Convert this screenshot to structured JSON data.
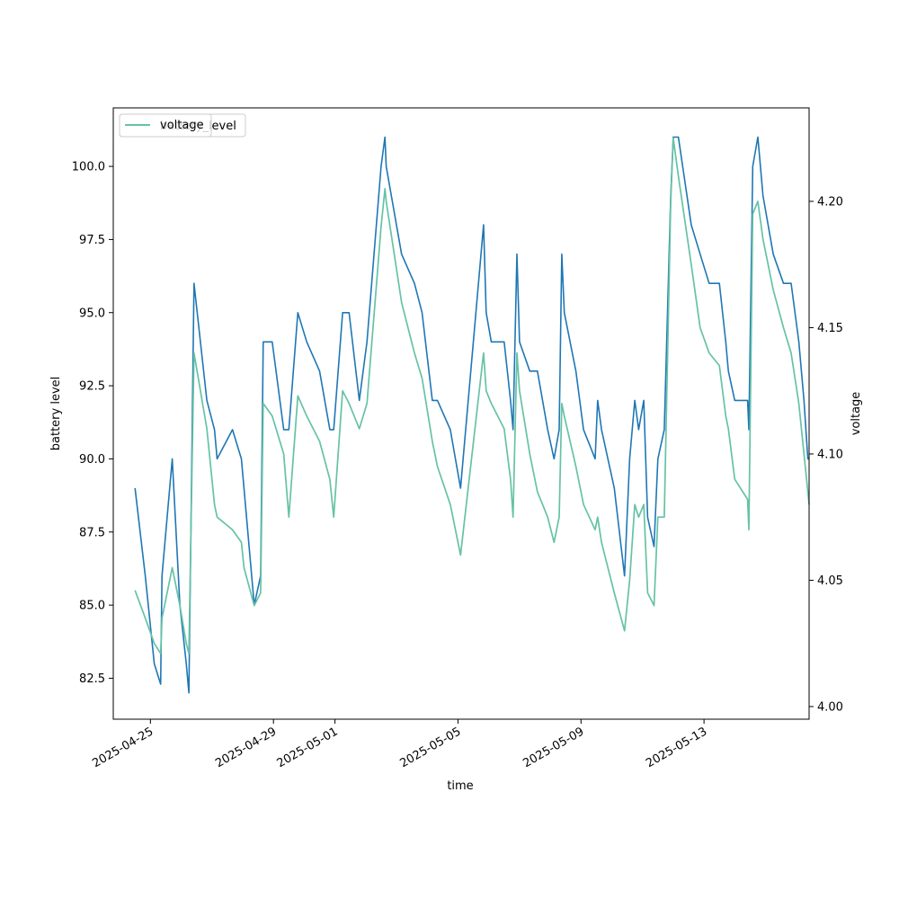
{
  "chart_data": {
    "type": "line",
    "xlabel": "time",
    "ylabel": "battery level",
    "y2label": "voltage",
    "x_ticks": [
      "2025-04-25",
      "2025-04-29",
      "2025-05-01",
      "2025-05-05",
      "2025-05-09",
      "2025-05-13"
    ],
    "y_ticks": [
      "82.5",
      "85.0",
      "87.5",
      "90.0",
      "92.5",
      "95.0",
      "97.5",
      "100.0"
    ],
    "y2_ticks": [
      "4.00",
      "4.05",
      "4.10",
      "4.15",
      "4.20"
    ],
    "xlim": [
      "2025-04-23 19:00",
      "2025-05-16 10:00"
    ],
    "ylim": [
      81.1,
      102.0
    ],
    "y2lim": [
      3.995,
      4.237
    ],
    "grid": false,
    "legend_position": "top-left",
    "legend": [
      "battery_level",
      "voltage"
    ],
    "series": [
      {
        "name": "battery_level",
        "axis": "left",
        "color": "#1f77b4",
        "points": [
          [
            "2025-04-24 12:00",
            89
          ],
          [
            "2025-04-24 20:00",
            86
          ],
          [
            "2025-04-25 03:00",
            83
          ],
          [
            "2025-04-25 08:00",
            82.3
          ],
          [
            "2025-04-25 09:00",
            86
          ],
          [
            "2025-04-25 17:00",
            90
          ],
          [
            "2025-04-25 23:00",
            85
          ],
          [
            "2025-04-26 04:00",
            83
          ],
          [
            "2025-04-26 06:00",
            82
          ],
          [
            "2025-04-26 10:00",
            96
          ],
          [
            "2025-04-26 20:00",
            92
          ],
          [
            "2025-04-27 02:00",
            91
          ],
          [
            "2025-04-27 04:00",
            90
          ],
          [
            "2025-04-27 16:00",
            91
          ],
          [
            "2025-04-27 23:00",
            90
          ],
          [
            "2025-04-28 01:00",
            89
          ],
          [
            "2025-04-28 09:00",
            85
          ],
          [
            "2025-04-28 14:00",
            86
          ],
          [
            "2025-04-28 16:00",
            94
          ],
          [
            "2025-04-28 23:00",
            94
          ],
          [
            "2025-04-29 08:00",
            91
          ],
          [
            "2025-04-29 12:00",
            91
          ],
          [
            "2025-04-29 19:00",
            95
          ],
          [
            "2025-04-30 02:00",
            94
          ],
          [
            "2025-04-30 12:00",
            93
          ],
          [
            "2025-04-30 20:00",
            91
          ],
          [
            "2025-04-30 23:00",
            91
          ],
          [
            "2025-05-01 06:00",
            95
          ],
          [
            "2025-05-01 11:00",
            95
          ],
          [
            "2025-05-01 19:00",
            92
          ],
          [
            "2025-05-02 01:00",
            94
          ],
          [
            "2025-05-02 12:00",
            100
          ],
          [
            "2025-05-02 15:00",
            101
          ],
          [
            "2025-05-02 16:00",
            100
          ],
          [
            "2025-05-03 04:00",
            97
          ],
          [
            "2025-05-03 14:00",
            96
          ],
          [
            "2025-05-03 20:00",
            95
          ],
          [
            "2025-05-04 04:00",
            92
          ],
          [
            "2025-05-04 08:00",
            92
          ],
          [
            "2025-05-04 18:00",
            91
          ],
          [
            "2025-05-05 02:00",
            89
          ],
          [
            "2025-05-05 20:00",
            98
          ],
          [
            "2025-05-05 22:00",
            95
          ],
          [
            "2025-05-06 02:00",
            94
          ],
          [
            "2025-05-06 12:00",
            94
          ],
          [
            "2025-05-06 17:00",
            92
          ],
          [
            "2025-05-06 19:00",
            91
          ],
          [
            "2025-05-06 22:00",
            97
          ],
          [
            "2025-05-07 00:00",
            94
          ],
          [
            "2025-05-07 08:00",
            93
          ],
          [
            "2025-05-07 14:00",
            93
          ],
          [
            "2025-05-07 22:00",
            91
          ],
          [
            "2025-05-08 03:00",
            90
          ],
          [
            "2025-05-08 07:00",
            91
          ],
          [
            "2025-05-08 09:00",
            97
          ],
          [
            "2025-05-08 11:00",
            95
          ],
          [
            "2025-05-08 20:00",
            93
          ],
          [
            "2025-05-09 02:00",
            91
          ],
          [
            "2025-05-09 11:00",
            90
          ],
          [
            "2025-05-09 13:00",
            92
          ],
          [
            "2025-05-09 16:00",
            91
          ],
          [
            "2025-05-10 02:00",
            89
          ],
          [
            "2025-05-10 10:00",
            86
          ],
          [
            "2025-05-10 14:00",
            90
          ],
          [
            "2025-05-10 18:00",
            92
          ],
          [
            "2025-05-10 21:00",
            91
          ],
          [
            "2025-05-11 01:00",
            92
          ],
          [
            "2025-05-11 04:00",
            88
          ],
          [
            "2025-05-11 09:00",
            87
          ],
          [
            "2025-05-11 12:00",
            90
          ],
          [
            "2025-05-11 17:00",
            91
          ],
          [
            "2025-05-11 22:00",
            99
          ],
          [
            "2025-05-12 00:00",
            101
          ],
          [
            "2025-05-12 04:00",
            101
          ],
          [
            "2025-05-12 14:00",
            98
          ],
          [
            "2025-05-12 21:00",
            97
          ],
          [
            "2025-05-13 04:00",
            96
          ],
          [
            "2025-05-13 12:00",
            96
          ],
          [
            "2025-05-13 17:00",
            94
          ],
          [
            "2025-05-13 19:00",
            93
          ],
          [
            "2025-05-14 00:00",
            92
          ],
          [
            "2025-05-14 10:00",
            92
          ],
          [
            "2025-05-14 11:00",
            91
          ],
          [
            "2025-05-14 14:00",
            100
          ],
          [
            "2025-05-14 18:00",
            101
          ],
          [
            "2025-05-14 22:00",
            99
          ],
          [
            "2025-05-15 06:00",
            97
          ],
          [
            "2025-05-15 14:00",
            96
          ],
          [
            "2025-05-15 20:00",
            96
          ],
          [
            "2025-05-16 02:00",
            94
          ],
          [
            "2025-05-16 06:00",
            92
          ],
          [
            "2025-05-16 09:00",
            90
          ],
          [
            "2025-05-16 10:00",
            90
          ]
        ]
      },
      {
        "name": "voltage",
        "axis": "right",
        "color": "#66c2a5",
        "points": [
          [
            "2025-04-24 12:00",
            4.046
          ],
          [
            "2025-04-24 20:00",
            4.035
          ],
          [
            "2025-04-25 03:00",
            4.025
          ],
          [
            "2025-04-25 08:00",
            4.021
          ],
          [
            "2025-04-25 09:00",
            4.035
          ],
          [
            "2025-04-25 17:00",
            4.055
          ],
          [
            "2025-04-25 23:00",
            4.04
          ],
          [
            "2025-04-26 04:00",
            4.025
          ],
          [
            "2025-04-26 06:00",
            4.021
          ],
          [
            "2025-04-26 10:00",
            4.14
          ],
          [
            "2025-04-26 20:00",
            4.11
          ],
          [
            "2025-04-27 02:00",
            4.08
          ],
          [
            "2025-04-27 04:00",
            4.075
          ],
          [
            "2025-04-27 16:00",
            4.07
          ],
          [
            "2025-04-27 23:00",
            4.065
          ],
          [
            "2025-04-28 01:00",
            4.055
          ],
          [
            "2025-04-28 09:00",
            4.04
          ],
          [
            "2025-04-28 14:00",
            4.045
          ],
          [
            "2025-04-28 16:00",
            4.12
          ],
          [
            "2025-04-28 23:00",
            4.115
          ],
          [
            "2025-04-29 08:00",
            4.1
          ],
          [
            "2025-04-29 12:00",
            4.075
          ],
          [
            "2025-04-29 19:00",
            4.123
          ],
          [
            "2025-04-30 02:00",
            4.115
          ],
          [
            "2025-04-30 12:00",
            4.105
          ],
          [
            "2025-04-30 20:00",
            4.09
          ],
          [
            "2025-04-30 23:00",
            4.075
          ],
          [
            "2025-05-01 06:00",
            4.125
          ],
          [
            "2025-05-01 11:00",
            4.12
          ],
          [
            "2025-05-01 19:00",
            4.11
          ],
          [
            "2025-05-02 01:00",
            4.12
          ],
          [
            "2025-05-02 12:00",
            4.19
          ],
          [
            "2025-05-02 15:00",
            4.205
          ],
          [
            "2025-05-02 16:00",
            4.2
          ],
          [
            "2025-05-03 04:00",
            4.16
          ],
          [
            "2025-05-03 14:00",
            4.14
          ],
          [
            "2025-05-03 20:00",
            4.13
          ],
          [
            "2025-05-04 04:00",
            4.105
          ],
          [
            "2025-05-04 08:00",
            4.095
          ],
          [
            "2025-05-04 18:00",
            4.08
          ],
          [
            "2025-05-05 02:00",
            4.06
          ],
          [
            "2025-05-05 20:00",
            4.14
          ],
          [
            "2025-05-05 22:00",
            4.125
          ],
          [
            "2025-05-06 02:00",
            4.12
          ],
          [
            "2025-05-06 12:00",
            4.11
          ],
          [
            "2025-05-06 17:00",
            4.09
          ],
          [
            "2025-05-06 19:00",
            4.075
          ],
          [
            "2025-05-06 22:00",
            4.14
          ],
          [
            "2025-05-07 00:00",
            4.125
          ],
          [
            "2025-05-07 08:00",
            4.1
          ],
          [
            "2025-05-07 14:00",
            4.085
          ],
          [
            "2025-05-07 22:00",
            4.075
          ],
          [
            "2025-05-08 03:00",
            4.065
          ],
          [
            "2025-05-08 07:00",
            4.075
          ],
          [
            "2025-05-08 09:00",
            4.12
          ],
          [
            "2025-05-08 11:00",
            4.115
          ],
          [
            "2025-05-08 20:00",
            4.095
          ],
          [
            "2025-05-09 02:00",
            4.08
          ],
          [
            "2025-05-09 11:00",
            4.07
          ],
          [
            "2025-05-09 13:00",
            4.075
          ],
          [
            "2025-05-09 16:00",
            4.065
          ],
          [
            "2025-05-10 02:00",
            4.045
          ],
          [
            "2025-05-10 10:00",
            4.03
          ],
          [
            "2025-05-10 14:00",
            4.05
          ],
          [
            "2025-05-10 18:00",
            4.08
          ],
          [
            "2025-05-10 21:00",
            4.075
          ],
          [
            "2025-05-11 01:00",
            4.08
          ],
          [
            "2025-05-11 04:00",
            4.045
          ],
          [
            "2025-05-11 09:00",
            4.04
          ],
          [
            "2025-05-11 12:00",
            4.075
          ],
          [
            "2025-05-11 17:00",
            4.075
          ],
          [
            "2025-05-11 22:00",
            4.2
          ],
          [
            "2025-05-12 00:00",
            4.225
          ],
          [
            "2025-05-12 04:00",
            4.21
          ],
          [
            "2025-05-12 14:00",
            4.175
          ],
          [
            "2025-05-12 21:00",
            4.15
          ],
          [
            "2025-05-13 04:00",
            4.14
          ],
          [
            "2025-05-13 12:00",
            4.135
          ],
          [
            "2025-05-13 17:00",
            4.115
          ],
          [
            "2025-05-13 19:00",
            4.11
          ],
          [
            "2025-05-14 00:00",
            4.09
          ],
          [
            "2025-05-14 10:00",
            4.082
          ],
          [
            "2025-05-14 11:00",
            4.07
          ],
          [
            "2025-05-14 14:00",
            4.195
          ],
          [
            "2025-05-14 18:00",
            4.2
          ],
          [
            "2025-05-14 22:00",
            4.185
          ],
          [
            "2025-05-15 06:00",
            4.165
          ],
          [
            "2025-05-15 14:00",
            4.15
          ],
          [
            "2025-05-15 20:00",
            4.14
          ],
          [
            "2025-05-16 02:00",
            4.12
          ],
          [
            "2025-05-16 06:00",
            4.1
          ],
          [
            "2025-05-16 09:00",
            4.085
          ],
          [
            "2025-05-16 10:00",
            4.08
          ]
        ]
      }
    ]
  }
}
